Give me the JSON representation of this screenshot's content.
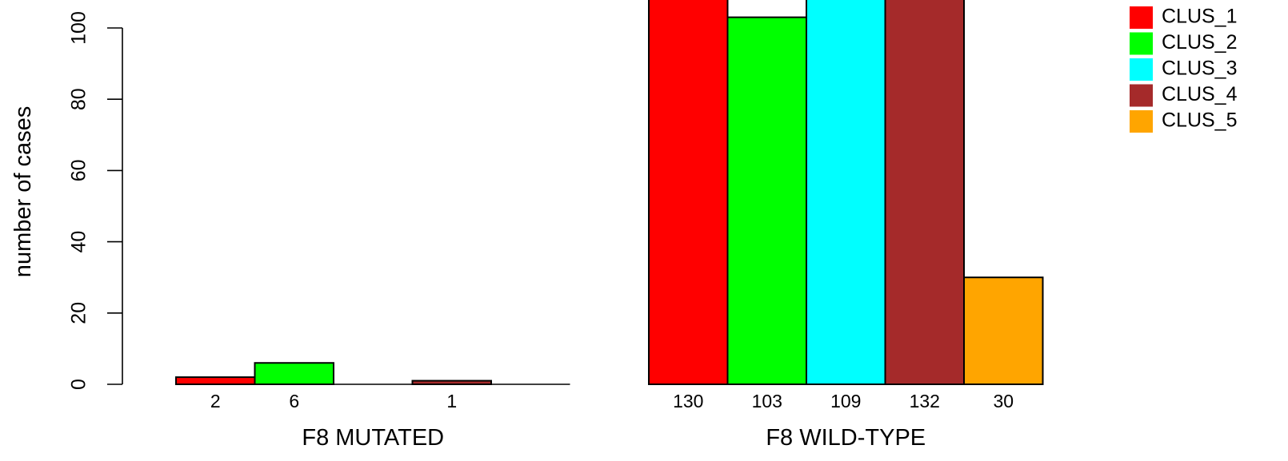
{
  "chart_data": {
    "type": "bar",
    "ylabel": "number of cases",
    "ylim": [
      0,
      120
    ],
    "yticks": [
      0,
      20,
      40,
      60,
      80,
      100
    ],
    "groups": [
      {
        "label": "F8 MUTATED",
        "values": [
          2,
          6,
          0,
          1,
          0
        ],
        "value_labels": [
          "2",
          "6",
          "",
          "1",
          ""
        ]
      },
      {
        "label": "F8 WILD-TYPE",
        "values": [
          130,
          103,
          109,
          132,
          30
        ],
        "value_labels": [
          "130",
          "103",
          "109",
          "132",
          "30"
        ]
      }
    ],
    "series": [
      {
        "name": "CLUS_1",
        "color": "#ff0000"
      },
      {
        "name": "CLUS_2",
        "color": "#00ff00"
      },
      {
        "name": "CLUS_3",
        "color": "#00ffff"
      },
      {
        "name": "CLUS_4",
        "color": "#a52a2a"
      },
      {
        "name": "CLUS_5",
        "color": "#ffa500"
      }
    ],
    "legend_position": "top-right",
    "grid": false
  }
}
